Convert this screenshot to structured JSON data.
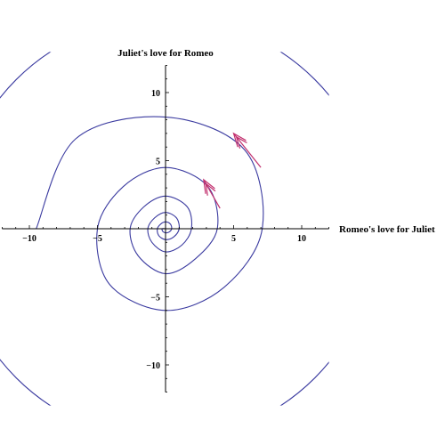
{
  "chart_data": {
    "type": "line",
    "xlabel": "Romeo's love for Juliet",
    "ylabel": "Juliet's love for Romeo",
    "xlim": [
      -12,
      12
    ],
    "ylim": [
      -12,
      12
    ],
    "x_ticks": [
      -10,
      -5,
      5,
      10
    ],
    "x_tick_labels": [
      "−10",
      "−5",
      "5",
      "10"
    ],
    "y_ticks": [
      10,
      5,
      -5,
      -10
    ],
    "y_tick_labels": [
      "10",
      "5",
      "−5",
      "−10"
    ],
    "grid": false,
    "series": [
      {
        "shape": "outward spiral",
        "color": "#3b3ba0",
        "points": [
          [
            -9.5,
            0
          ],
          [
            -6.6,
            6.6
          ],
          [
            0,
            8.2
          ],
          [
            5.8,
            5.8
          ],
          [
            7.1,
            0
          ],
          [
            4.3,
            -4.3
          ],
          [
            0,
            -6.0
          ],
          [
            -4.1,
            -4.1
          ],
          [
            -5.0,
            0
          ],
          [
            -3.1,
            3.1
          ],
          [
            0,
            4.5
          ],
          [
            3.1,
            3.1
          ],
          [
            3.8,
            0
          ],
          [
            2.2,
            -2.2
          ],
          [
            0,
            -3.3
          ],
          [
            -2.0,
            -2.0
          ],
          [
            -2.6,
            0
          ],
          [
            -1.6,
            1.6
          ],
          [
            0,
            2.4
          ],
          [
            1.6,
            1.6
          ],
          [
            1.9,
            0
          ],
          [
            1.2,
            -1.2
          ],
          [
            0,
            -1.7
          ],
          [
            -1.0,
            -1.0
          ],
          [
            -1.3,
            0
          ],
          [
            -0.8,
            0.8
          ],
          [
            0,
            1.2
          ],
          [
            0.8,
            0.8
          ],
          [
            1.0,
            0
          ],
          [
            0.6,
            -0.6
          ],
          [
            0,
            -0.8
          ],
          [
            -0.5,
            -0.5
          ],
          [
            -0.6,
            0
          ],
          [
            -0.35,
            0.35
          ],
          [
            0,
            0.5
          ],
          [
            0.35,
            0.35
          ],
          [
            0.45,
            0
          ],
          [
            0.25,
            -0.25
          ],
          [
            0,
            -0.3
          ],
          [
            -0.2,
            -0.2
          ],
          [
            -0.25,
            0
          ],
          [
            0,
            0
          ]
        ]
      }
    ],
    "partial_arcs": [
      {
        "center": [
          0,
          0
        ],
        "radius": 15.5,
        "note": "outer arc clipped by plot range"
      }
    ],
    "arrows": [
      {
        "from": [
          7.0,
          4.5
        ],
        "to": [
          5.0,
          7.0
        ],
        "color": "#c2306e"
      },
      {
        "from": [
          4.0,
          1.5
        ],
        "to": [
          2.8,
          3.6
        ],
        "color": "#c2306e"
      }
    ]
  }
}
